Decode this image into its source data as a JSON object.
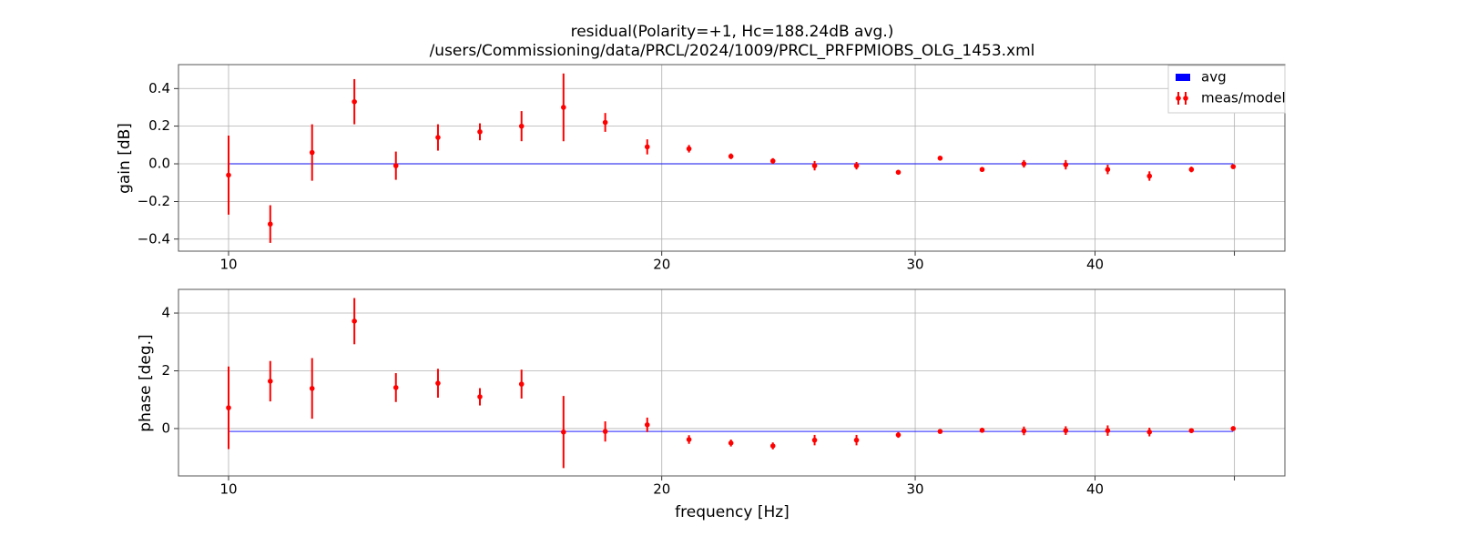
{
  "chart_data": [
    {
      "type": "errorbar",
      "title": "residual(Polarity=+1,  Hc=188.24dB avg.)",
      "subtitle": "/users/Commissioning/data/PRCL/2024/1009/PRCL_PRFPMIOBS_OLG_1453.xml",
      "ylabel": "gain [dB]",
      "xscale": "log",
      "grid": true,
      "legend": "upper right",
      "xlim": [
        9.23,
        54.2
      ],
      "ylim": [
        -0.464,
        0.527
      ],
      "xticks": [
        10,
        20,
        30,
        40,
        {
          "value": 50,
          "label": null
        }
      ],
      "yticks": [
        {
          "value": 0.4,
          "label": "0.4"
        },
        {
          "value": 0.2,
          "label": "0.2"
        },
        {
          "value": 0,
          "label": "0.0"
        },
        {
          "value": -0.2,
          "label": "−0.2"
        },
        {
          "value": -0.4,
          "label": "−0.4"
        }
      ],
      "x": [
        10.0,
        10.69,
        11.43,
        12.23,
        13.07,
        13.98,
        14.95,
        15.98,
        17.09,
        18.27,
        19.54,
        20.89,
        22.34,
        23.89,
        25.54,
        27.31,
        29.2,
        31.22,
        33.39,
        35.7,
        38.17,
        40.82,
        43.64,
        46.67,
        49.9
      ],
      "series": [
        {
          "name": "avg",
          "color": "#0000ff",
          "value": 0
        },
        {
          "name": "meas/model",
          "color": "#ff0000",
          "values": [
            -0.06,
            -0.32,
            0.06,
            0.33,
            -0.01,
            0.14,
            0.17,
            0.2,
            0.3,
            0.22,
            0.09,
            0.08,
            0.04,
            0.015,
            -0.01,
            -0.01,
            -0.045,
            0.03,
            -0.03,
            0.0,
            -0.005,
            -0.03,
            -0.065,
            -0.03,
            -0.015
          ],
          "errors": [
            0.21,
            0.1,
            0.15,
            0.12,
            0.075,
            0.07,
            0.045,
            0.08,
            0.18,
            0.05,
            0.04,
            0.02,
            0.015,
            0.015,
            0.025,
            0.02,
            0.01,
            0.01,
            0.01,
            0.02,
            0.025,
            0.025,
            0.025,
            0.015,
            0.005
          ]
        }
      ]
    },
    {
      "type": "errorbar",
      "ylabel": "phase [deg.]",
      "xlabel": "frequency [Hz]",
      "xscale": "log",
      "grid": true,
      "xlim": [
        9.23,
        54.2
      ],
      "ylim": [
        -1.64,
        4.82
      ],
      "xticks": [
        10,
        20,
        30,
        40,
        {
          "value": 50,
          "label": null
        }
      ],
      "yticks": [
        4,
        2,
        0
      ],
      "x": [
        10.0,
        10.69,
        11.43,
        12.23,
        13.07,
        13.98,
        14.95,
        15.98,
        17.09,
        18.27,
        19.54,
        20.89,
        22.34,
        23.89,
        25.54,
        27.31,
        29.2,
        31.22,
        33.39,
        35.7,
        38.17,
        40.82,
        43.64,
        46.67,
        49.9
      ],
      "series": [
        {
          "color": "#0000ff",
          "value": -0.1
        },
        {
          "color": "#ff0000",
          "values": [
            0.72,
            1.64,
            1.39,
            3.72,
            1.42,
            1.57,
            1.1,
            1.54,
            -0.12,
            -0.1,
            0.13,
            -0.38,
            -0.5,
            -0.6,
            -0.4,
            -0.4,
            -0.22,
            -0.1,
            -0.06,
            -0.08,
            -0.07,
            -0.07,
            -0.12,
            -0.07,
            0.0
          ],
          "errors": [
            1.43,
            0.7,
            1.05,
            0.8,
            0.5,
            0.5,
            0.3,
            0.5,
            1.25,
            0.35,
            0.25,
            0.15,
            0.12,
            0.12,
            0.18,
            0.18,
            0.1,
            0.05,
            0.08,
            0.15,
            0.15,
            0.18,
            0.15,
            0.08,
            0.03
          ]
        }
      ]
    }
  ]
}
